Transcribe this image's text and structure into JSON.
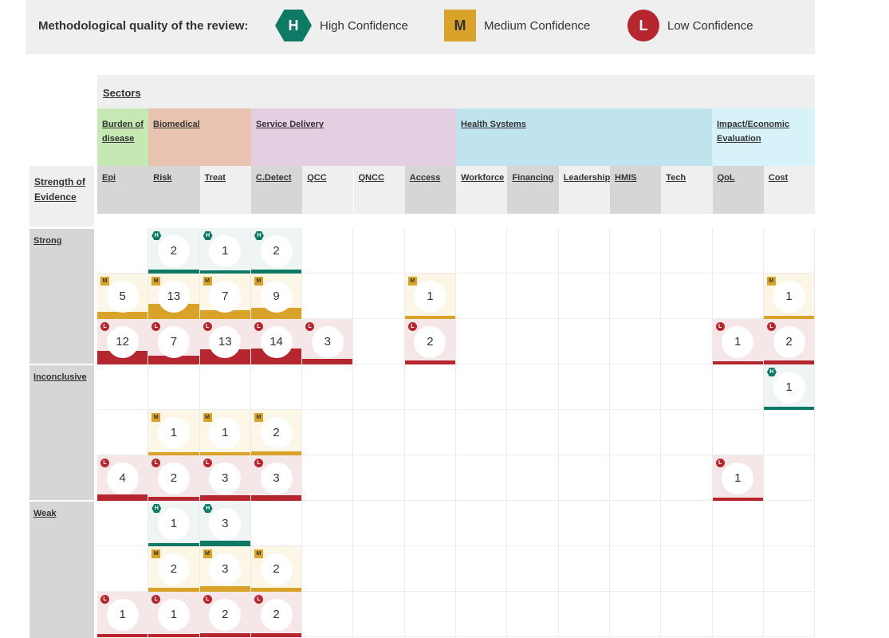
{
  "legend": {
    "title": "Methodological quality of the review:",
    "items": [
      {
        "key": "H",
        "symbol": "H",
        "label": "High Confidence",
        "shape": "hexagon",
        "color": "#0e7a66"
      },
      {
        "key": "M",
        "symbol": "M",
        "label": "Medium Confidence",
        "shape": "square",
        "color": "#d9a32a"
      },
      {
        "key": "L",
        "symbol": "L",
        "label": "Low Confidence",
        "shape": "circle",
        "color": "#b5262e"
      }
    ]
  },
  "sectors_title": "Sectors",
  "strength_label": "Strength of Evidence",
  "sectors": [
    {
      "label": "Burden of disease",
      "color": "#c6e8b4"
    },
    {
      "label": "Biomedical",
      "color": "#e8c4b0"
    },
    {
      "label": "Service Delivery",
      "color": "#e4cfe2"
    },
    {
      "label": "Health Systems",
      "color": "#c0e4ed"
    },
    {
      "label": "Impact/Economic Evaluation",
      "color": "#d7f2f8"
    }
  ],
  "columns": [
    "Epi",
    "Risk",
    "Treat",
    "C.Detect",
    "QCC",
    "QNCC",
    "Access",
    "Workforce",
    "Financing",
    "Leadership",
    "HMIS",
    "Tech",
    "QoL",
    "Cost"
  ],
  "groups": [
    "Strong",
    "Inconclusive",
    "Weak"
  ],
  "quality_colors": {
    "H": {
      "bg": "#eef5f4",
      "bar": "#0e7a66"
    },
    "M": {
      "bg": "#fcf6e7",
      "bar": "#d9a32a"
    },
    "L": {
      "bg": "#f5e6e8",
      "bar": "#b5262e"
    }
  },
  "rows": [
    {
      "group": "Strong",
      "quality": "H",
      "values": [
        null,
        2,
        1,
        2,
        null,
        null,
        null,
        null,
        null,
        null,
        null,
        null,
        null,
        null
      ]
    },
    {
      "group": "Strong",
      "quality": "M",
      "values": [
        5,
        13,
        7,
        9,
        null,
        null,
        1,
        null,
        null,
        null,
        null,
        null,
        null,
        1
      ]
    },
    {
      "group": "Strong",
      "quality": "L",
      "values": [
        12,
        7,
        13,
        14,
        3,
        null,
        2,
        null,
        null,
        null,
        null,
        null,
        1,
        2
      ]
    },
    {
      "group": "Inconclusive",
      "quality": "H",
      "values": [
        null,
        null,
        null,
        null,
        null,
        null,
        null,
        null,
        null,
        null,
        null,
        null,
        null,
        1
      ]
    },
    {
      "group": "Inconclusive",
      "quality": "M",
      "values": [
        null,
        1,
        1,
        2,
        null,
        null,
        null,
        null,
        null,
        null,
        null,
        null,
        null,
        null
      ]
    },
    {
      "group": "Inconclusive",
      "quality": "L",
      "values": [
        4,
        2,
        3,
        3,
        null,
        null,
        null,
        null,
        null,
        null,
        null,
        null,
        1,
        null
      ]
    },
    {
      "group": "Weak",
      "quality": "H",
      "values": [
        null,
        1,
        3,
        null,
        null,
        null,
        null,
        null,
        null,
        null,
        null,
        null,
        null,
        null
      ]
    },
    {
      "group": "Weak",
      "quality": "M",
      "values": [
        null,
        2,
        3,
        2,
        null,
        null,
        null,
        null,
        null,
        null,
        null,
        null,
        null,
        null
      ]
    },
    {
      "group": "Weak",
      "quality": "L",
      "values": [
        1,
        1,
        2,
        2,
        null,
        null,
        null,
        null,
        null,
        null,
        null,
        null,
        null,
        null
      ]
    }
  ]
}
